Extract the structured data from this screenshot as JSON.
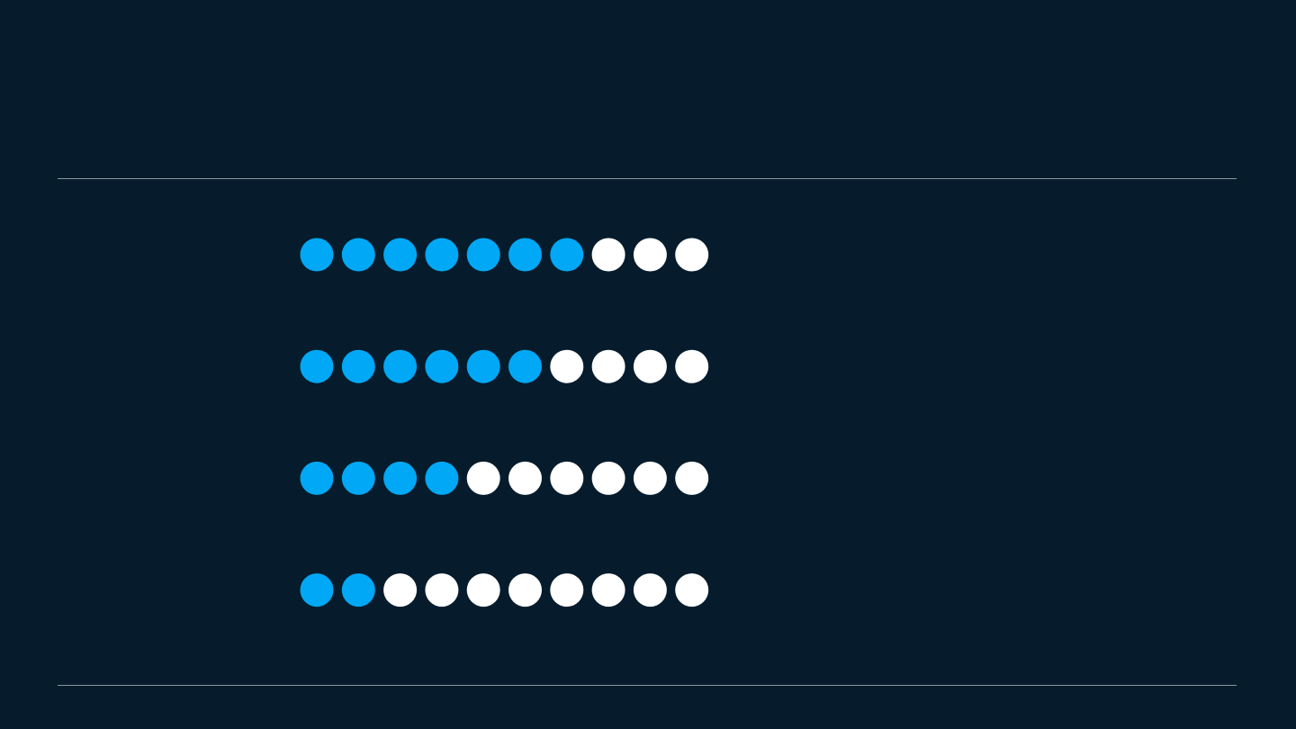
{
  "colors": {
    "background": "#061c2c",
    "filled": "#00a8f5",
    "empty": "#ffffff",
    "divider": "#8a97a0"
  },
  "chart_data": {
    "type": "dot-matrix",
    "total_per_row": 10,
    "series": [
      {
        "filled": 7
      },
      {
        "filled": 6
      },
      {
        "filled": 4
      },
      {
        "filled": 2
      }
    ]
  }
}
